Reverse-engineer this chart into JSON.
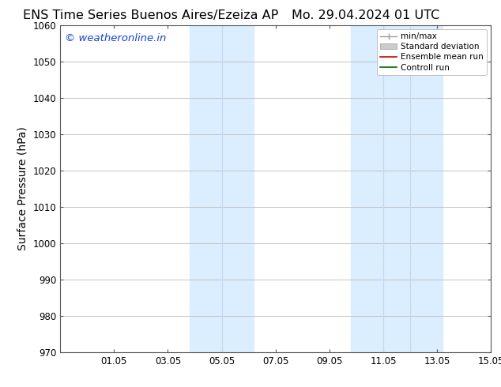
{
  "title_left": "ENS Time Series Buenos Aires/Ezeiza AP",
  "title_right": "Mo. 29.04.2024 01 UTC",
  "ylabel": "Surface Pressure (hPa)",
  "ylim": [
    970,
    1060
  ],
  "yticks": [
    970,
    980,
    990,
    1000,
    1010,
    1020,
    1030,
    1040,
    1050,
    1060
  ],
  "xlim": [
    0.0,
    16.0
  ],
  "xtick_labels": [
    "01.05",
    "03.05",
    "05.05",
    "07.05",
    "09.05",
    "11.05",
    "13.05",
    "15.05"
  ],
  "xtick_positions": [
    2,
    4,
    6,
    8,
    10,
    12,
    14,
    16
  ],
  "shaded_bands": [
    {
      "x_start": 4.5,
      "x_end": 5.5,
      "color": "#ddeeff"
    },
    {
      "x_start": 5.5,
      "x_end": 6.5,
      "color": "#ddeeff"
    },
    {
      "x_start": 10.5,
      "x_end": 11.5,
      "color": "#ddeeff"
    },
    {
      "x_start": 11.5,
      "x_end": 12.5,
      "color": "#ddeeff"
    },
    {
      "x_start": 12.5,
      "x_end": 13.5,
      "color": "#ddeeff"
    }
  ],
  "watermark": "© weatheronline.in",
  "watermark_color": "#1144cc",
  "background_color": "#ffffff",
  "grid_color": "#bbbbbb",
  "title_fontsize": 11.5,
  "watermark_fontsize": 9.5,
  "axis_label_fontsize": 10,
  "tick_fontsize": 8.5
}
